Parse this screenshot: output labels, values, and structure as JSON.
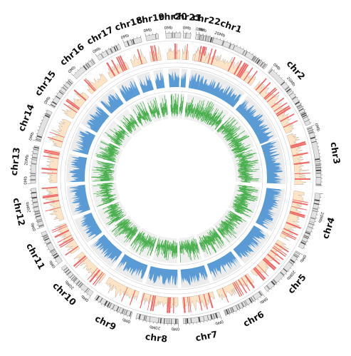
{
  "chromosomes": [
    {
      "name": "chr1",
      "label": "chr1",
      "tick_label": "0Mb",
      "tick2_label": "20Mb"
    },
    {
      "name": "chr2",
      "label": "chr2",
      "tick_label": "0Mb",
      "tick2_label": "20Mb"
    },
    {
      "name": "chr3",
      "label": "chr3",
      "tick_label": "0Mb",
      "tick2_label": ""
    },
    {
      "name": "chr4",
      "label": "chr4",
      "tick_label": "",
      "tick2_label": "20Mb"
    },
    {
      "name": "chr5",
      "label": "chr5",
      "tick_label": "0Mb",
      "tick2_label": "20Mb"
    },
    {
      "name": "chr6",
      "label": "chr6",
      "tick_label": "0Mb",
      "tick2_label": ""
    },
    {
      "name": "chr7",
      "label": "chr7",
      "tick_label": "0Mb",
      "tick2_label": ""
    },
    {
      "name": "chr8",
      "label": "chr8",
      "tick_label": "0Mb",
      "tick2_label": "20Mb"
    },
    {
      "name": "chr9",
      "label": "chr9",
      "tick_label": "0Mb",
      "tick2_label": ""
    },
    {
      "name": "chr10",
      "label": "chr10",
      "tick_label": "0Mb",
      "tick2_label": "20Mb"
    },
    {
      "name": "chr11",
      "label": "chr11",
      "tick_label": "0Mb",
      "tick2_label": ""
    },
    {
      "name": "chr12",
      "label": "chr12",
      "tick_label": "0Mb",
      "tick2_label": "20Mb"
    },
    {
      "name": "chr13",
      "label": "chr13",
      "tick_label": "0Mb",
      "tick2_label": "20Mb"
    },
    {
      "name": "chr14",
      "label": "chr14",
      "tick_label": "0Mb",
      "tick2_label": ""
    },
    {
      "name": "chr15",
      "label": "chr15",
      "tick_label": "0Mb",
      "tick2_label": ""
    },
    {
      "name": "chr16",
      "label": "chr16",
      "tick_label": "0Mb",
      "tick2_label": ""
    },
    {
      "name": "chr17",
      "label": "chr17",
      "tick_label": "0Mb",
      "tick2_label": ""
    },
    {
      "name": "chr18",
      "label": "chr18",
      "tick_label": "0Mb",
      "tick2_label": ""
    },
    {
      "name": "chr19",
      "label": "chr19",
      "tick_label": "0Mb",
      "tick2_label": ""
    },
    {
      "name": "chr20",
      "label": "chr20",
      "tick_label": "0Mb",
      "tick2_label": ""
    },
    {
      "name": "chr21",
      "label": "chr21",
      "tick_label": "0Mb",
      "tick2_label": ""
    },
    {
      "name": "chr22",
      "label": "chr22",
      "tick_label": "0Mb",
      "tick2_label": ""
    }
  ],
  "colors": {
    "ideogram_band": "#4d4d4d",
    "ideogram_bg": "#e2e2e2",
    "track1_fill": "#fde4c6",
    "track1_line": "#a89a86",
    "track1_highlight": "#ef5b5b",
    "track2_fill": "#5b9bd5",
    "track2_bg": "#ececec",
    "track3_fill": "#4caf50",
    "track3_bg": "#f0f0f0",
    "ring_line": "#d0d0d0"
  }
}
